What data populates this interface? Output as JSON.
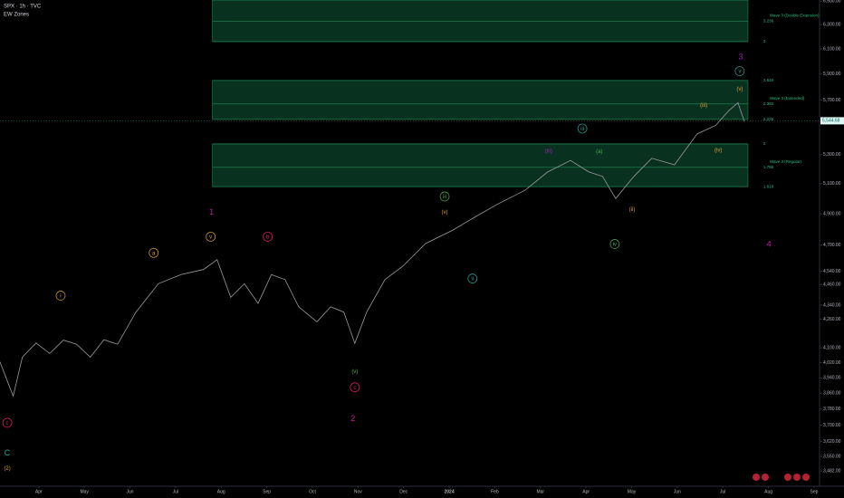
{
  "chart_data": {
    "type": "line",
    "symbol": "SPX · 1h · TVC",
    "indicator": "EW Zones",
    "ylog": true,
    "xlim": [
      -0.85,
      17.12
    ],
    "ylim": [
      3420,
      6510
    ],
    "xticks": [
      {
        "value": 0,
        "label": "Apr"
      },
      {
        "value": 1,
        "label": "May"
      },
      {
        "value": 2,
        "label": "Jun"
      },
      {
        "value": 3,
        "label": "Jul"
      },
      {
        "value": 4,
        "label": "Aug"
      },
      {
        "value": 5,
        "label": "Sep"
      },
      {
        "value": 6,
        "label": "Oct"
      },
      {
        "value": 7,
        "label": "Nov"
      },
      {
        "value": 8,
        "label": "Dec"
      },
      {
        "value": 9,
        "label": "2024"
      },
      {
        "value": 10,
        "label": "Feb"
      },
      {
        "value": 11,
        "label": "Mar"
      },
      {
        "value": 12,
        "label": "Apr"
      },
      {
        "value": 13,
        "label": "May"
      },
      {
        "value": 14,
        "label": "Jun"
      },
      {
        "value": 15,
        "label": "Jul"
      },
      {
        "value": 16,
        "label": "Aug"
      },
      {
        "value": 17,
        "label": "Sep"
      }
    ],
    "yticks": [
      {
        "value": 6500,
        "label": "6,500.00"
      },
      {
        "value": 6300,
        "label": "6,300.00"
      },
      {
        "value": 6100,
        "label": "6,100.00"
      },
      {
        "value": 5900,
        "label": "5,900.00"
      },
      {
        "value": 5700,
        "label": "5,700.00"
      },
      {
        "value": 5300,
        "label": "5,300.00"
      },
      {
        "value": 5100,
        "label": "5,100.00"
      },
      {
        "value": 4900,
        "label": "4,900.00"
      },
      {
        "value": 4700,
        "label": "4,700.00"
      },
      {
        "value": 4540,
        "label": "4,540.00"
      },
      {
        "value": 4460,
        "label": "4,460.00"
      },
      {
        "value": 4340,
        "label": "4,340.00"
      },
      {
        "value": 4260,
        "label": "4,260.00"
      },
      {
        "value": 4100,
        "label": "4,100.00"
      },
      {
        "value": 4020,
        "label": "4,020.00"
      },
      {
        "value": 3940,
        "label": "3,940.00"
      },
      {
        "value": 3860,
        "label": "3,860.00"
      },
      {
        "value": 3780,
        "label": "3,780.00"
      },
      {
        "value": 3700,
        "label": "3,700.00"
      },
      {
        "value": 3620,
        "label": "3,620.00"
      },
      {
        "value": 3550,
        "label": "3,550.00"
      },
      {
        "value": 3482,
        "label": "3,482.00"
      }
    ],
    "last_price": {
      "value": 5544.68,
      "label": "5,544.68"
    },
    "series": [
      {
        "name": "SPX",
        "color": "#9a9aa0",
        "x": [
          -0.85,
          -0.66,
          -0.56,
          -0.36,
          -0.06,
          0.24,
          0.54,
          0.83,
          1.13,
          1.43,
          1.73,
          2.13,
          2.62,
          3.12,
          3.61,
          3.91,
          4.21,
          4.51,
          4.81,
          5.1,
          5.4,
          5.7,
          6.1,
          6.4,
          6.69,
          6.93,
          7.19,
          7.59,
          7.98,
          8.48,
          9.08,
          9.57,
          10.07,
          10.66,
          11.16,
          11.66,
          12.06,
          12.36,
          12.65,
          13.05,
          13.44,
          13.94,
          14.44,
          14.84,
          15.13,
          15.33,
          15.47
        ],
        "values": [
          4025,
          3905,
          3846,
          4050,
          4127,
          4070,
          4143,
          4120,
          4050,
          4145,
          4120,
          4300,
          4465,
          4520,
          4550,
          4610,
          4385,
          4465,
          4350,
          4520,
          4490,
          4330,
          4245,
          4330,
          4300,
          4125,
          4300,
          4490,
          4570,
          4710,
          4795,
          4880,
          4965,
          5055,
          5180,
          5260,
          5180,
          5150,
          5000,
          5150,
          5275,
          5230,
          5450,
          5510,
          5620,
          5680,
          5540
        ]
      }
    ],
    "zones": [
      {
        "name": "Wave 3 (Double Extension)",
        "x": [
          3.81,
          15.55
        ],
        "levels": [
          {
            "value": 6510
          },
          {
            "value": 6329,
            "label": "3.236"
          },
          {
            "value": 6160,
            "label": "3"
          }
        ]
      },
      {
        "name": "Wave 3 (Extended)",
        "x": [
          3.81,
          15.55
        ],
        "levels": [
          {
            "value": 5850,
            "label": "2.618"
          },
          {
            "value": 5670,
            "label": "2.382"
          },
          {
            "value": 5555,
            "label": "2.236"
          }
        ]
      },
      {
        "name": "Wave 3 (Regular)",
        "x": [
          3.81,
          15.55
        ],
        "levels": [
          {
            "value": 5377,
            "label": "2"
          },
          {
            "value": 5212,
            "label": "1.786"
          },
          {
            "value": 5080,
            "label": "1.618"
          }
        ]
      }
    ],
    "annotations": [
      {
        "text": "C",
        "x": -0.69,
        "y": 3567,
        "color": "#26a69a",
        "circled": false
      },
      {
        "text": "(2)",
        "x": -0.69,
        "y": 3495,
        "color": "#e0a030",
        "circled": false
      },
      {
        "text": "c",
        "x": -0.69,
        "y": 3712,
        "color": "#e91e63",
        "circled": true
      },
      {
        "text": "i",
        "x": 0.48,
        "y": 4395,
        "color": "#e0a030",
        "circled": true
      },
      {
        "text": "a",
        "x": 2.52,
        "y": 4652,
        "color": "#e0a030",
        "circled": true
      },
      {
        "text": "v",
        "x": 3.77,
        "y": 4753,
        "color": "#e0a030",
        "circled": true
      },
      {
        "text": "1",
        "x": 3.79,
        "y": 4913,
        "color": "#c2189b",
        "circled": false
      },
      {
        "text": "b",
        "x": 5.02,
        "y": 4753,
        "color": "#e91e63",
        "circled": true
      },
      {
        "text": "(v)",
        "x": 6.93,
        "y": 3976,
        "color": "#4caf50",
        "circled": false
      },
      {
        "text": "c",
        "x": 6.93,
        "y": 3891,
        "color": "#e91e63",
        "circled": true
      },
      {
        "text": "2",
        "x": 6.89,
        "y": 3734,
        "color": "#c2189b",
        "circled": false
      },
      {
        "text": "iii",
        "x": 8.9,
        "y": 5014,
        "color": "#4caf50",
        "circled": true
      },
      {
        "text": "(v)",
        "x": 8.9,
        "y": 4913,
        "color": "#e0a030",
        "circled": false
      },
      {
        "text": "ii",
        "x": 9.51,
        "y": 4496,
        "color": "#26a69a",
        "circled": true
      },
      {
        "text": "(iii)",
        "x": 11.18,
        "y": 5330,
        "color": "#9c27b0",
        "circled": false
      },
      {
        "text": "iii",
        "x": 11.92,
        "y": 5488,
        "color": "#26a69a",
        "circled": true
      },
      {
        "text": "(a)",
        "x": 12.29,
        "y": 5325,
        "color": "#4caf50",
        "circled": false
      },
      {
        "text": "iv",
        "x": 12.63,
        "y": 4707,
        "color": "#4caf50",
        "circled": true
      },
      {
        "text": "(ii)",
        "x": 13.01,
        "y": 4932,
        "color": "#e0a030",
        "circled": false
      },
      {
        "text": "(iii)",
        "x": 14.58,
        "y": 5662,
        "color": "#e0a030",
        "circled": false
      },
      {
        "text": "(iv)",
        "x": 14.9,
        "y": 5335,
        "color": "#e0a030",
        "circled": false
      },
      {
        "text": "(v)",
        "x": 15.37,
        "y": 5786,
        "color": "#e0a030",
        "circled": false
      },
      {
        "text": "v",
        "x": 15.37,
        "y": 5923,
        "color": "#26a69a",
        "circled": true
      },
      {
        "text": "3",
        "x": 15.39,
        "y": 6037,
        "color": "#9c27b0",
        "circled": false
      },
      {
        "text": "4",
        "x": 16.01,
        "y": 4707,
        "color": "#c2189b",
        "circled": false
      }
    ]
  }
}
